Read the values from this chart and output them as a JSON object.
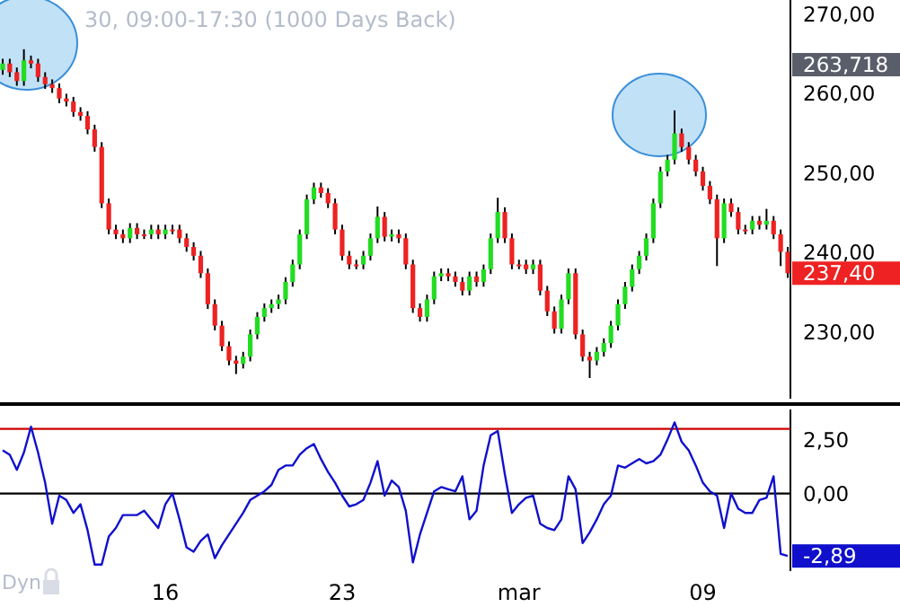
{
  "chart_data": [
    {
      "type": "candlestick",
      "title": "30, 09:00-17:30 (1000 Days Back)",
      "categories": [
        null,
        null,
        null,
        null,
        null,
        null,
        null,
        null,
        null,
        null,
        null,
        null,
        null,
        null,
        null,
        null,
        null,
        null,
        null,
        null,
        null,
        null,
        null,
        null,
        null,
        null,
        null,
        null,
        null,
        null,
        null,
        null,
        null,
        null,
        null,
        null,
        null,
        null,
        null,
        null,
        null,
        null,
        null,
        null,
        null,
        null,
        null,
        null,
        null,
        null,
        null,
        null,
        null,
        null,
        null,
        null,
        null,
        null,
        null,
        null,
        null,
        null,
        null,
        null,
        null,
        null,
        null,
        null,
        null,
        null,
        null,
        null,
        null,
        null,
        null,
        null,
        null,
        null,
        null,
        null,
        null,
        null,
        null,
        null,
        null,
        null,
        null,
        null,
        null,
        null,
        null,
        null,
        null,
        null,
        null,
        null,
        null,
        null,
        null,
        null,
        null,
        null,
        null,
        null,
        null,
        null,
        null,
        null,
        null,
        null,
        null,
        null
      ],
      "ohlc": [
        [
          263.0,
          264.4,
          262.4,
          263.8
        ],
        [
          263.8,
          264.4,
          262.1,
          262.7
        ],
        [
          262.7,
          263.3,
          261.0,
          261.6
        ],
        [
          261.6,
          265.6,
          261.0,
          264.2
        ],
        [
          264.2,
          264.8,
          263.2,
          263.8
        ],
        [
          263.8,
          264.4,
          261.5,
          262.1
        ],
        [
          262.1,
          262.7,
          260.6,
          261.2
        ],
        [
          261.2,
          261.8,
          260.1,
          260.7
        ],
        [
          260.7,
          261.3,
          258.8,
          259.4
        ],
        [
          259.4,
          260.0,
          258.4,
          259.0
        ],
        [
          259.0,
          259.6,
          257.1,
          257.7
        ],
        [
          257.7,
          258.3,
          256.6,
          257.2
        ],
        [
          257.2,
          257.8,
          254.9,
          255.5
        ],
        [
          255.5,
          256.1,
          252.7,
          253.3
        ],
        [
          253.3,
          253.9,
          245.6,
          246.2
        ],
        [
          246.2,
          246.8,
          242.3,
          242.9
        ],
        [
          242.9,
          243.5,
          241.7,
          242.3
        ],
        [
          242.3,
          242.9,
          241.2,
          241.8
        ],
        [
          241.8,
          243.7,
          241.2,
          243.1
        ],
        [
          243.1,
          243.7,
          241.7,
          242.3
        ],
        [
          242.3,
          242.9,
          241.7,
          242.3
        ],
        [
          242.3,
          243.5,
          241.7,
          242.9
        ],
        [
          242.9,
          243.5,
          241.7,
          242.3
        ],
        [
          242.3,
          243.5,
          241.7,
          242.9
        ],
        [
          242.9,
          243.5,
          242.3,
          242.9
        ],
        [
          242.9,
          243.5,
          241.2,
          241.8
        ],
        [
          241.8,
          242.4,
          240.1,
          240.7
        ],
        [
          240.7,
          241.3,
          239.0,
          239.6
        ],
        [
          239.6,
          240.2,
          236.8,
          237.4
        ],
        [
          237.4,
          238.0,
          232.9,
          233.5
        ],
        [
          233.5,
          234.1,
          230.2,
          230.8
        ],
        [
          230.8,
          231.4,
          227.6,
          228.2
        ],
        [
          228.2,
          228.8,
          225.8,
          226.4
        ],
        [
          226.4,
          227.0,
          224.7,
          226.0
        ],
        [
          226.0,
          227.5,
          225.4,
          226.9
        ],
        [
          226.9,
          230.3,
          226.3,
          229.7
        ],
        [
          229.7,
          232.5,
          229.1,
          231.9
        ],
        [
          231.9,
          233.6,
          231.3,
          233.0
        ],
        [
          233.0,
          234.1,
          232.4,
          233.5
        ],
        [
          233.5,
          234.7,
          232.9,
          234.1
        ],
        [
          234.1,
          236.9,
          233.5,
          236.3
        ],
        [
          236.3,
          239.1,
          235.7,
          238.5
        ],
        [
          238.5,
          242.9,
          237.9,
          242.3
        ],
        [
          242.3,
          247.3,
          241.7,
          246.7
        ],
        [
          246.7,
          248.8,
          246.1,
          248.2
        ],
        [
          248.2,
          248.8,
          246.9,
          247.5
        ],
        [
          247.5,
          248.1,
          245.6,
          246.2
        ],
        [
          246.2,
          246.8,
          242.3,
          242.9
        ],
        [
          242.9,
          243.5,
          239.0,
          239.6
        ],
        [
          239.6,
          240.2,
          237.9,
          238.5
        ],
        [
          238.5,
          239.1,
          237.9,
          238.5
        ],
        [
          238.5,
          240.2,
          237.9,
          239.6
        ],
        [
          239.6,
          242.4,
          239.0,
          241.8
        ],
        [
          241.8,
          245.8,
          241.2,
          244.5
        ],
        [
          244.5,
          245.1,
          241.4,
          242.0
        ],
        [
          242.0,
          242.9,
          241.4,
          242.3
        ],
        [
          242.3,
          242.9,
          241.2,
          241.8
        ],
        [
          241.8,
          242.4,
          237.9,
          238.5
        ],
        [
          238.5,
          239.1,
          232.4,
          233.0
        ],
        [
          233.0,
          233.6,
          231.3,
          231.9
        ],
        [
          231.9,
          234.7,
          231.3,
          234.1
        ],
        [
          234.1,
          237.6,
          233.5,
          237.0
        ],
        [
          237.0,
          238.0,
          236.4,
          237.4
        ],
        [
          237.4,
          238.0,
          236.4,
          237.0
        ],
        [
          237.0,
          237.6,
          235.7,
          236.3
        ],
        [
          236.3,
          236.9,
          234.6,
          235.2
        ],
        [
          235.2,
          237.6,
          234.6,
          237.0
        ],
        [
          237.0,
          237.6,
          235.7,
          236.3
        ],
        [
          236.3,
          238.5,
          235.7,
          237.9
        ],
        [
          237.9,
          242.4,
          237.3,
          241.8
        ],
        [
          241.8,
          246.9,
          241.2,
          245.1
        ],
        [
          245.1,
          245.7,
          241.2,
          241.8
        ],
        [
          241.8,
          242.4,
          237.9,
          238.5
        ],
        [
          238.5,
          239.1,
          237.9,
          238.5
        ],
        [
          238.5,
          239.1,
          237.3,
          237.9
        ],
        [
          237.9,
          239.1,
          237.3,
          238.5
        ],
        [
          238.5,
          239.1,
          234.6,
          235.2
        ],
        [
          235.2,
          235.8,
          232.0,
          232.6
        ],
        [
          232.6,
          233.2,
          229.8,
          230.4
        ],
        [
          230.4,
          234.7,
          229.8,
          234.1
        ],
        [
          234.1,
          238.0,
          233.5,
          237.4
        ],
        [
          237.4,
          238.0,
          229.1,
          229.7
        ],
        [
          229.7,
          230.3,
          226.3,
          226.9
        ],
        [
          226.9,
          227.5,
          224.2,
          226.4
        ],
        [
          226.4,
          228.1,
          225.8,
          227.5
        ],
        [
          227.5,
          229.2,
          226.9,
          228.6
        ],
        [
          228.6,
          231.4,
          228.0,
          230.8
        ],
        [
          230.8,
          234.1,
          230.2,
          233.5
        ],
        [
          233.5,
          236.3,
          232.9,
          235.7
        ],
        [
          235.7,
          238.5,
          235.1,
          237.9
        ],
        [
          237.9,
          240.2,
          237.3,
          239.6
        ],
        [
          239.6,
          242.4,
          239.0,
          241.8
        ],
        [
          241.8,
          246.8,
          241.2,
          246.2
        ],
        [
          246.2,
          250.8,
          245.6,
          250.2
        ],
        [
          250.2,
          252.3,
          249.6,
          251.7
        ],
        [
          251.7,
          257.9,
          251.1,
          255.0
        ],
        [
          255.0,
          255.6,
          252.7,
          253.3
        ],
        [
          253.3,
          253.9,
          251.1,
          251.7
        ],
        [
          251.7,
          252.3,
          249.6,
          250.2
        ],
        [
          250.2,
          250.8,
          247.8,
          248.4
        ],
        [
          248.4,
          249.0,
          246.1,
          246.7
        ],
        [
          246.7,
          247.3,
          238.3,
          241.8
        ],
        [
          241.8,
          246.8,
          241.2,
          246.2
        ],
        [
          246.2,
          246.8,
          244.5,
          245.1
        ],
        [
          245.1,
          245.7,
          242.3,
          242.9
        ],
        [
          242.9,
          243.5,
          242.3,
          242.9
        ],
        [
          242.9,
          244.6,
          242.3,
          244.0
        ],
        [
          244.0,
          244.6,
          242.9,
          243.5
        ],
        [
          243.5,
          245.5,
          242.9,
          244.0
        ],
        [
          244.0,
          244.6,
          241.7,
          242.3
        ],
        [
          242.3,
          242.9,
          238.3,
          240.1
        ],
        [
          240.1,
          240.7,
          236.8,
          237.4
        ]
      ],
      "colors": [
        "#22dd22",
        "#ee2222",
        "#ee2222",
        "#22dd22",
        "#ee2222",
        "#ee2222",
        "#ee2222",
        "#ee2222",
        "#ee2222",
        "#ee2222",
        "#ee2222",
        "#ee2222",
        "#ee2222",
        "#ee2222",
        "#ee2222",
        "#ee2222",
        "#ee2222",
        "#ee2222",
        "#22dd22",
        "#ee2222",
        "#ee2222",
        "#22dd22",
        "#ee2222",
        "#22dd22",
        "#ee2222",
        "#ee2222",
        "#ee2222",
        "#ee2222",
        "#ee2222",
        "#ee2222",
        "#ee2222",
        "#ee2222",
        "#ee2222",
        "#ee2222",
        "#22dd22",
        "#22dd22",
        "#22dd22",
        "#22dd22",
        "#22dd22",
        "#22dd22",
        "#22dd22",
        "#22dd22",
        "#22dd22",
        "#22dd22",
        "#22dd22",
        "#ee2222",
        "#ee2222",
        "#ee2222",
        "#ee2222",
        "#ee2222",
        "#ee2222",
        "#22dd22",
        "#22dd22",
        "#22dd22",
        "#ee2222",
        "#22dd22",
        "#ee2222",
        "#ee2222",
        "#ee2222",
        "#ee2222",
        "#22dd22",
        "#22dd22",
        "#22dd22",
        "#ee2222",
        "#ee2222",
        "#ee2222",
        "#22dd22",
        "#ee2222",
        "#22dd22",
        "#22dd22",
        "#22dd22",
        "#ee2222",
        "#ee2222",
        "#ee2222",
        "#ee2222",
        "#22dd22",
        "#ee2222",
        "#ee2222",
        "#ee2222",
        "#22dd22",
        "#22dd22",
        "#ee2222",
        "#ee2222",
        "#ee2222",
        "#22dd22",
        "#22dd22",
        "#22dd22",
        "#22dd22",
        "#22dd22",
        "#22dd22",
        "#22dd22",
        "#22dd22",
        "#22dd22",
        "#22dd22",
        "#22dd22",
        "#22dd22",
        "#ee2222",
        "#ee2222",
        "#ee2222",
        "#ee2222",
        "#ee2222",
        "#ee2222",
        "#22dd22",
        "#ee2222",
        "#ee2222",
        "#ee2222",
        "#22dd22",
        "#ee2222",
        "#22dd22",
        "#ee2222",
        "#ee2222",
        "#ee2222"
      ],
      "ylim": [
        221.6,
        271.8
      ],
      "yticks": [
        {
          "value": 230,
          "label": "230,00"
        },
        {
          "value": 240,
          "label": "240,00"
        },
        {
          "value": 250,
          "label": "250,00"
        },
        {
          "value": 260,
          "label": "260,00"
        },
        {
          "value": 270,
          "label": "270,00"
        }
      ],
      "tick_labels": "y",
      "annotations": [
        "263,718",
        "237,40"
      ]
    },
    {
      "type": "line",
      "ylim": [
        -3.6,
        3.9
      ],
      "categories": [
        null,
        null,
        null,
        null,
        null,
        null,
        null,
        null,
        null,
        null,
        null,
        null,
        null,
        null,
        null,
        null,
        null,
        null,
        null,
        null,
        null,
        null,
        null,
        "16",
        null,
        null,
        null,
        null,
        null,
        null,
        null,
        null,
        null,
        null,
        null,
        null,
        null,
        null,
        null,
        null,
        null,
        null,
        null,
        null,
        null,
        null,
        null,
        null,
        "23",
        null,
        null,
        null,
        null,
        null,
        null,
        null,
        null,
        null,
        null,
        null,
        null,
        null,
        null,
        null,
        null,
        null,
        null,
        null,
        null,
        null,
        null,
        null,
        null,
        "mar",
        null,
        null,
        null,
        null,
        null,
        null,
        null,
        null,
        null,
        null,
        null,
        null,
        null,
        null,
        null,
        null,
        null,
        null,
        null,
        null,
        null,
        null,
        null,
        null,
        null,
        "09",
        null,
        null,
        null,
        null,
        null,
        null,
        null,
        null,
        null,
        null,
        null,
        null
      ],
      "yticks": [
        {
          "value": 0,
          "label": "0,00"
        },
        {
          "value": 2.5,
          "label": "2,50"
        }
      ],
      "series": [
        {
          "color": "#1010cc",
          "values": [
            2.0,
            1.8,
            1.1,
            1.9,
            3.1,
            1.9,
            0.5,
            -1.4,
            -0.1,
            -0.3,
            -0.9,
            -0.5,
            -1.7,
            -3.3,
            -3.3,
            -2.0,
            -1.6,
            -1.0,
            -1.0,
            -1.0,
            -0.8,
            -1.2,
            -1.6,
            -0.5,
            0.0,
            -1.2,
            -2.5,
            -2.7,
            -2.2,
            -1.9,
            -3.0,
            -2.4,
            -1.9,
            -1.4,
            -0.9,
            -0.3,
            -0.1,
            0.1,
            0.4,
            1.1,
            1.3,
            1.3,
            1.8,
            2.1,
            2.3,
            1.6,
            1.0,
            0.5,
            -0.1,
            -0.6,
            -0.5,
            -0.3,
            0.5,
            1.5,
            -0.1,
            0.6,
            0.3,
            -0.8,
            -3.2,
            -1.9,
            -0.9,
            0.1,
            0.3,
            0.2,
            0.1,
            0.8,
            -1.2,
            -0.8,
            1.3,
            2.7,
            2.9,
            0.9,
            -0.9,
            -0.5,
            -0.2,
            -0.1,
            -1.4,
            -1.6,
            -1.7,
            -1.2,
            0.8,
            0.2,
            -2.3,
            -1.8,
            -1.2,
            -0.5,
            -0.1,
            1.3,
            1.2,
            1.4,
            1.6,
            1.4,
            1.5,
            1.8,
            2.5,
            3.3,
            2.4,
            2.0,
            1.3,
            0.5,
            0.1,
            -0.1,
            -1.6,
            0.0,
            -0.7,
            -0.9,
            -0.9,
            -0.3,
            -0.2,
            0.8,
            -2.8,
            -2.9
          ]
        }
      ],
      "ref_lines": [
        {
          "axis": "y",
          "value": 0,
          "color": "#000000"
        },
        {
          "axis": "y",
          "value": 3,
          "color": "#cc0000"
        }
      ],
      "annotations": [
        "-2,89",
        "Dyn"
      ]
    }
  ]
}
